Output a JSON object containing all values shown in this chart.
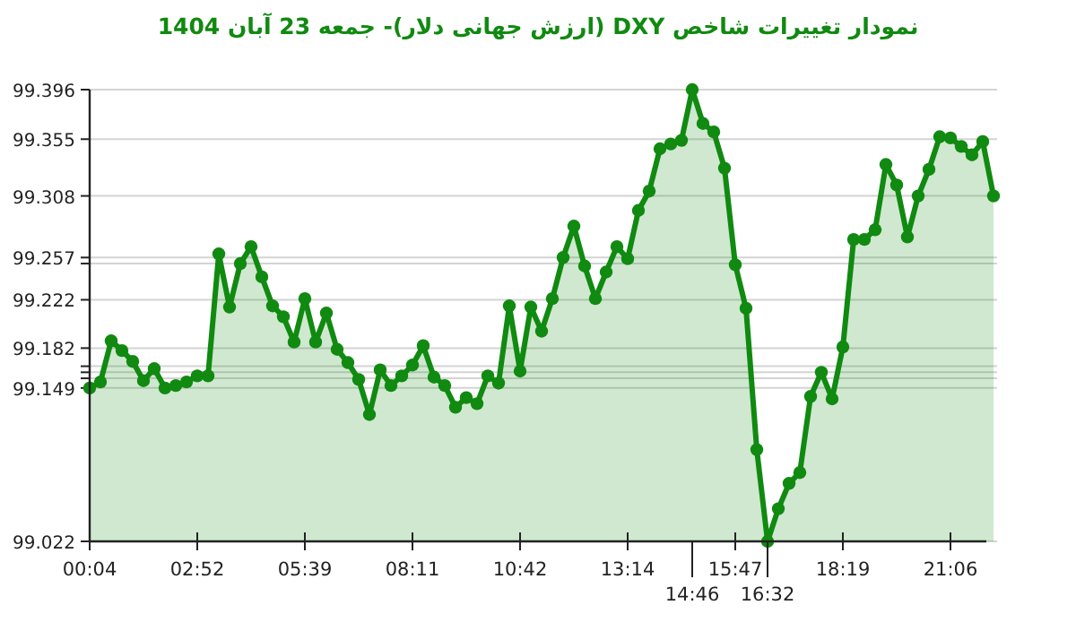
{
  "chart_data": {
    "type": "area",
    "title": "نمودار تغییرات شاخص DXY (ارزش جهانی دلار)- جمعه  23 آبان 1404",
    "categories": [
      "00:04",
      null,
      null,
      null,
      null,
      null,
      null,
      null,
      null,
      null,
      "02:52",
      null,
      null,
      null,
      null,
      null,
      null,
      null,
      null,
      null,
      "05:39",
      null,
      null,
      null,
      null,
      null,
      null,
      null,
      null,
      null,
      "08:11",
      null,
      null,
      null,
      null,
      null,
      null,
      null,
      null,
      null,
      "10:42",
      null,
      null,
      null,
      null,
      null,
      null,
      null,
      null,
      null,
      "13:14",
      null,
      null,
      null,
      null,
      null,
      "14:46",
      null,
      null,
      null,
      "15:47",
      null,
      null,
      "16:32",
      null,
      null,
      null,
      null,
      null,
      null,
      "18:19",
      null,
      null,
      null,
      null,
      null,
      null,
      null,
      null,
      null,
      "21:06",
      null,
      null,
      null,
      null
    ],
    "values": [
      99.149,
      99.154,
      99.188,
      99.18,
      99.171,
      99.155,
      99.165,
      99.149,
      99.151,
      99.154,
      99.159,
      99.159,
      99.26,
      99.216,
      99.252,
      99.266,
      99.241,
      99.217,
      99.208,
      99.187,
      99.223,
      99.187,
      99.211,
      99.181,
      99.17,
      99.156,
      99.127,
      99.164,
      99.151,
      99.159,
      99.168,
      99.184,
      99.158,
      99.151,
      99.133,
      99.141,
      99.136,
      99.159,
      99.153,
      99.217,
      99.163,
      99.216,
      99.196,
      99.223,
      99.257,
      99.283,
      99.25,
      99.223,
      99.245,
      99.266,
      99.256,
      99.296,
      99.312,
      99.347,
      99.351,
      99.354,
      99.396,
      99.368,
      99.361,
      99.331,
      99.251,
      99.215,
      99.098,
      99.022,
      99.049,
      99.07,
      99.079,
      99.142,
      99.162,
      99.14,
      99.183,
      99.272,
      99.272,
      99.28,
      99.334,
      99.317,
      99.274,
      99.308,
      99.33,
      99.357,
      99.356,
      99.349,
      99.342,
      99.353,
      99.308
    ],
    "color": "#108a10",
    "ylim": [
      99.022,
      99.396
    ],
    "yticks": [
      99.022,
      99.149,
      {
        "value": 99.157,
        "label": null
      },
      {
        "value": 99.162,
        "label": null
      },
      {
        "value": 99.167,
        "label": null
      },
      99.182,
      99.222,
      {
        "value": 99.252,
        "label": null
      },
      99.257,
      99.308,
      99.355,
      99.396
    ],
    "grid": "y",
    "marker": "circle"
  }
}
